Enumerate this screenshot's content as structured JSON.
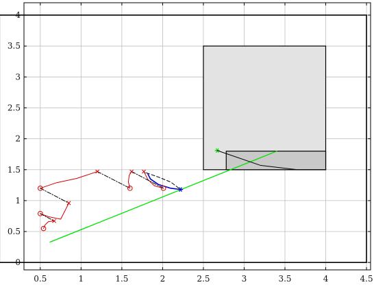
{
  "chart_data": {
    "type": "line",
    "title": "",
    "xlabel": "",
    "ylabel": "",
    "xlim": [
      0.3,
      4.55
    ],
    "ylim": [
      -0.12,
      4.2
    ],
    "xticks": [
      0.5,
      1,
      1.5,
      2,
      2.5,
      3,
      3.5,
      4,
      4.5
    ],
    "xtick_labels": [
      "0.5",
      "1",
      "1.5",
      "2",
      "2.5",
      "3",
      "3.5",
      "4",
      "4.5"
    ],
    "yticks": [
      0,
      0.5,
      1,
      1.5,
      2,
      2.5,
      3,
      3.5,
      4
    ],
    "ytick_labels": [
      "0",
      "0.5",
      "1",
      "1.5",
      "2",
      "2.5",
      "3",
      "3.5",
      "4"
    ],
    "grid": true,
    "colors": {
      "boundary": "#000000",
      "obstacle_fill": "#e3e3e3",
      "goal_fill": "#c9c9c9",
      "trajectory": "#00e000",
      "history": "#d40000",
      "history_link": "#000000",
      "current": "#0000cc",
      "grid": "#bdbdbd"
    },
    "regions": [
      {
        "role": "workspace-boundary",
        "x": [
          0,
          4.5
        ],
        "y": [
          0,
          4
        ]
      },
      {
        "role": "obstacle",
        "x": [
          2.5,
          4
        ],
        "y": [
          1.5,
          3.5
        ]
      },
      {
        "role": "goal-region",
        "x": [
          2.78,
          4
        ],
        "y": [
          1.5,
          1.8
        ]
      }
    ],
    "series": [
      {
        "role": "green-path",
        "style": "solid",
        "color": "#00e000",
        "x": [
          0.62,
          3.4
        ],
        "y": [
          0.33,
          1.8
        ]
      },
      {
        "role": "green-star",
        "style": "star",
        "color": "#00e000",
        "x": [
          2.67
        ],
        "y": [
          1.81
        ]
      },
      {
        "role": "black-goal-curve",
        "style": "solid",
        "color": "#000000",
        "x": [
          2.67,
          2.78,
          3.2,
          3.65,
          4.0
        ],
        "y": [
          1.81,
          1.76,
          1.57,
          1.5,
          1.5
        ]
      },
      {
        "role": "red-arc-1",
        "style": "solid",
        "color": "#d40000",
        "x": [
          0.54,
          0.56,
          0.6,
          0.67
        ],
        "y": [
          0.55,
          0.61,
          0.66,
          0.67
        ]
      },
      {
        "role": "red-arc-2",
        "style": "solid",
        "color": "#d40000",
        "x": [
          0.5,
          0.6,
          0.75,
          0.85
        ],
        "y": [
          0.79,
          0.74,
          0.7,
          0.96
        ]
      },
      {
        "role": "red-arc-3",
        "style": "solid",
        "color": "#d40000",
        "x": [
          0.5,
          0.7,
          0.95,
          1.2
        ],
        "y": [
          1.2,
          1.29,
          1.36,
          1.47
        ]
      },
      {
        "role": "red-arc-4",
        "style": "solid",
        "color": "#d40000",
        "x": [
          1.6,
          1.58,
          1.59,
          1.62
        ],
        "y": [
          1.2,
          1.3,
          1.41,
          1.47
        ]
      },
      {
        "role": "red-arc-5",
        "style": "solid",
        "color": "#d40000",
        "x": [
          1.77,
          1.82,
          1.9,
          2.01
        ],
        "y": [
          1.47,
          1.34,
          1.24,
          1.2
        ]
      },
      {
        "role": "link-1",
        "style": "dashdot",
        "color": "#000000",
        "x": [
          0.5,
          0.67
        ],
        "y": [
          0.79,
          0.67
        ]
      },
      {
        "role": "link-2",
        "style": "dashdot",
        "color": "#000000",
        "x": [
          0.5,
          0.85
        ],
        "y": [
          1.2,
          0.96
        ]
      },
      {
        "role": "link-3",
        "style": "dashdot",
        "color": "#000000",
        "x": [
          1.2,
          1.6
        ],
        "y": [
          1.47,
          1.2
        ]
      },
      {
        "role": "link-4",
        "style": "dashdot",
        "color": "#000000",
        "x": [
          1.62,
          2.01
        ],
        "y": [
          1.47,
          1.2
        ]
      },
      {
        "role": "link-5",
        "style": "dashed",
        "color": "#000000",
        "x": [
          1.8,
          1.95,
          2.1,
          2.22
        ],
        "y": [
          1.45,
          1.38,
          1.3,
          1.18
        ]
      },
      {
        "role": "blue-arc",
        "style": "solid",
        "color": "#0000cc",
        "x": [
          1.82,
          1.85,
          1.95,
          2.1,
          2.22
        ],
        "y": [
          1.43,
          1.35,
          1.26,
          1.2,
          1.18
        ]
      },
      {
        "role": "red-circles",
        "style": "circle",
        "color": "#d40000",
        "x": [
          0.54,
          0.5,
          0.5,
          1.6,
          2.01
        ],
        "y": [
          0.55,
          0.79,
          1.2,
          1.2,
          1.2
        ]
      },
      {
        "role": "red-crosses",
        "style": "cross",
        "color": "#d40000",
        "x": [
          0.67,
          0.85,
          1.2,
          1.62,
          1.77
        ],
        "y": [
          0.67,
          0.96,
          1.47,
          1.47,
          1.47
        ]
      },
      {
        "role": "blue-star",
        "style": "star",
        "color": "#0000cc",
        "x": [
          2.22
        ],
        "y": [
          1.18
        ]
      }
    ]
  }
}
